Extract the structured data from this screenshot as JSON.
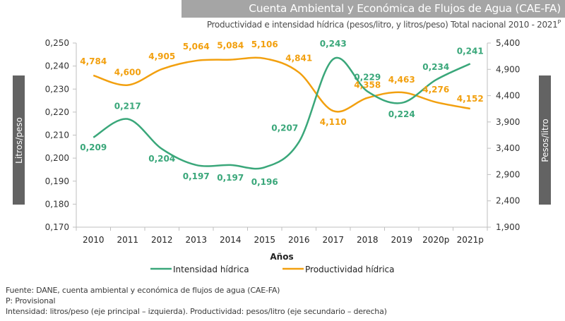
{
  "title": "Cuenta Ambiental y Económica de Flujos de Agua (CAE-FA)",
  "subtitle": "Productividad e intensidad hídrica (pesos/litro, y litros/peso) Total nacional 2010 - 2021",
  "subtitle_sup": "P",
  "left_axis_box": "Litros/peso",
  "right_axis_box": "Pesos/litro",
  "footnotes": [
    "Fuente: DANE, cuenta ambiental y económica de flujos de agua (CAE-FA)",
    "P: Provisional",
    "Intensidad: litros/peso (eje principal – izquierda). Productividad: pesos/litro (eje secundario – derecha)"
  ],
  "colors": {
    "intensidad": "#3aa77a",
    "productividad": "#f2a00f",
    "axis": "#bfbfbf",
    "label_box": "#636363",
    "title_bar": "#a5a5a5"
  },
  "chart_data": {
    "type": "line",
    "xlabel": "Años",
    "categories": [
      "2010",
      "2011",
      "2012",
      "2013",
      "2014",
      "2015",
      "2016",
      "2017",
      "2018",
      "2019",
      "2020p",
      "2021p"
    ],
    "y_left": {
      "label": "Litros/peso",
      "ylim": [
        0.17,
        0.25
      ],
      "ticks": [
        "0,170",
        "0,180",
        "0,190",
        "0,200",
        "0,210",
        "0,220",
        "0,230",
        "0,240",
        "0,250"
      ]
    },
    "y_right": {
      "label": "Pesos/litro",
      "ylim": [
        1900,
        5400
      ],
      "ticks": [
        "1,900",
        "2,400",
        "2,900",
        "3,400",
        "3,900",
        "4,400",
        "4,900",
        "5,400"
      ]
    },
    "legend_position": "bottom",
    "series": [
      {
        "name": "Intensidad hídrica",
        "axis": "left",
        "values": [
          0.209,
          0.217,
          0.204,
          0.197,
          0.197,
          0.196,
          0.207,
          0.243,
          0.229,
          0.224,
          0.234,
          0.241
        ],
        "labels": [
          "0,209",
          "0,217",
          "0,204",
          "0,197",
          "0,197",
          "0,196",
          "0,207",
          "0,243",
          "0,229",
          "0,224",
          "0,234",
          "0,241"
        ]
      },
      {
        "name": "Productividad hídrica",
        "axis": "right",
        "values": [
          4784,
          4600,
          4905,
          5064,
          5084,
          5106,
          4841,
          4110,
          4358,
          4463,
          4276,
          4152
        ],
        "labels": [
          "4,784",
          "4,600",
          "4,905",
          "5,064",
          "5,084",
          "5,106",
          "4,841",
          "4,110",
          "4,358",
          "4,463",
          "4,276",
          "4,152"
        ]
      }
    ]
  }
}
